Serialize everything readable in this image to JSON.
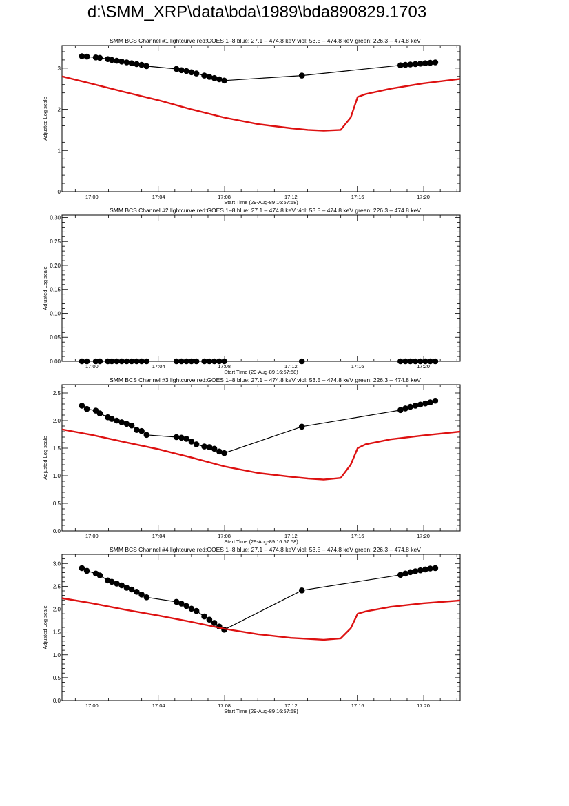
{
  "page": {
    "title": "d:\\SMM_XRP\\data\\bda\\1989\\bda890829.1703"
  },
  "colors": {
    "goes_series": "#dd1111",
    "bcs_series": "#000000"
  },
  "chart_data": [
    {
      "type": "line",
      "title": "SMM BCS Channel #1 lightcurve  red:GOES 1–8  blue: 27.1 – 474.8 keV  viol: 53.5 – 474.8 keV  green: 226.3 – 474.8 keV",
      "xlabel": "Start Time (29-Aug-89 16:57:58)",
      "ylabel": "Adjusted Log scale",
      "x_axis": "minutes after 16:58",
      "xlim": [
        16.97,
        17.37
      ],
      "ylim": [
        0,
        3.55
      ],
      "yticks": [
        0,
        1,
        2,
        3
      ],
      "ytick_labels": [
        "0",
        "1",
        "2",
        "3"
      ],
      "xticks": [
        17.0,
        17.067,
        17.133,
        17.2,
        17.267,
        17.333
      ],
      "xtick_labels": [
        "17:00",
        "17:04",
        "17:08",
        "17:12",
        "17:16",
        "17:20"
      ],
      "series": [
        {
          "kind": "bcs",
          "x": [
            16.99,
            16.995,
            17.004,
            17.008,
            17.016,
            17.02,
            17.025,
            17.03,
            17.035,
            17.04,
            17.045,
            17.05,
            17.055,
            17.085,
            17.09,
            17.095,
            17.1,
            17.105,
            17.113,
            17.118,
            17.123,
            17.128,
            17.133,
            17.211,
            17.31,
            17.315,
            17.32,
            17.325,
            17.33,
            17.335,
            17.34,
            17.345
          ],
          "values": [
            3.29,
            3.28,
            3.26,
            3.25,
            3.22,
            3.2,
            3.18,
            3.16,
            3.14,
            3.12,
            3.1,
            3.08,
            3.05,
            2.98,
            2.95,
            2.93,
            2.9,
            2.87,
            2.82,
            2.79,
            2.76,
            2.73,
            2.7,
            2.82,
            3.07,
            3.08,
            3.09,
            3.1,
            3.11,
            3.12,
            3.13,
            3.14
          ]
        },
        {
          "kind": "goes",
          "x": [
            16.97,
            17.0,
            17.033,
            17.067,
            17.1,
            17.133,
            17.167,
            17.2,
            17.217,
            17.233,
            17.25,
            17.26,
            17.267,
            17.275,
            17.3,
            17.333,
            17.37
          ],
          "values": [
            2.8,
            2.62,
            2.42,
            2.22,
            2.0,
            1.8,
            1.64,
            1.54,
            1.5,
            1.48,
            1.5,
            1.8,
            2.3,
            2.37,
            2.5,
            2.63,
            2.74
          ]
        }
      ]
    },
    {
      "type": "line",
      "title": "SMM BCS Channel #2 lightcurve  red:GOES 1–8  blue: 27.1 – 474.8 keV  viol: 53.5 – 474.8 keV  green: 226.3 – 474.8 keV",
      "xlabel": "Start Time (29-Aug-89 16:57:58)",
      "ylabel": "Adjusted Log scale",
      "x_axis": "minutes after 16:58",
      "xlim": [
        16.97,
        17.37
      ],
      "ylim": [
        0,
        0.305
      ],
      "yticks": [
        0,
        0.05,
        0.1,
        0.15,
        0.2,
        0.25,
        0.3
      ],
      "ytick_labels": [
        "0.00",
        "0.05",
        "0.10",
        "0.15",
        "0.20",
        "0.25",
        "0.30"
      ],
      "xticks": [
        17.0,
        17.067,
        17.133,
        17.2,
        17.267,
        17.333
      ],
      "xtick_labels": [
        "17:00",
        "17:04",
        "17:08",
        "17:12",
        "17:16",
        "17:20"
      ],
      "series": [
        {
          "kind": "bcs",
          "x": [
            16.99,
            16.995,
            17.004,
            17.008,
            17.016,
            17.02,
            17.025,
            17.03,
            17.035,
            17.04,
            17.045,
            17.05,
            17.055,
            17.085,
            17.09,
            17.095,
            17.1,
            17.105,
            17.113,
            17.118,
            17.123,
            17.128,
            17.133,
            17.211,
            17.31,
            17.315,
            17.32,
            17.325,
            17.33,
            17.335,
            17.34,
            17.345
          ],
          "values": [
            0,
            0,
            0,
            0,
            0,
            0,
            0,
            0,
            0,
            0,
            0,
            0,
            0,
            0,
            0,
            0,
            0,
            0,
            0,
            0,
            0,
            0,
            0,
            0,
            0,
            0,
            0,
            0,
            0,
            0,
            0,
            0
          ]
        }
      ]
    },
    {
      "type": "line",
      "title": "SMM BCS Channel #3 lightcurve  red:GOES 1–8  blue: 27.1 – 474.8 keV  viol: 53.5 – 474.8 keV  green: 226.3 – 474.8 keV",
      "xlabel": "Start Time (29-Aug-89 16:57:58)",
      "ylabel": "Adjusted Log scale",
      "x_axis": "minutes after 16:58",
      "xlim": [
        16.97,
        17.37
      ],
      "ylim": [
        0,
        2.65
      ],
      "yticks": [
        0,
        0.5,
        1,
        1.5,
        2,
        2.5
      ],
      "ytick_labels": [
        "0.0",
        "0.5",
        "1.0",
        "1.5",
        "2.0",
        "2.5"
      ],
      "xticks": [
        17.0,
        17.067,
        17.133,
        17.2,
        17.267,
        17.333
      ],
      "xtick_labels": [
        "17:00",
        "17:04",
        "17:08",
        "17:12",
        "17:16",
        "17:20"
      ],
      "series": [
        {
          "kind": "bcs",
          "x": [
            16.99,
            16.995,
            17.004,
            17.008,
            17.016,
            17.02,
            17.025,
            17.03,
            17.035,
            17.04,
            17.045,
            17.05,
            17.055,
            17.085,
            17.09,
            17.095,
            17.1,
            17.105,
            17.113,
            17.118,
            17.123,
            17.128,
            17.133,
            17.211,
            17.31,
            17.315,
            17.32,
            17.325,
            17.33,
            17.335,
            17.34,
            17.345
          ],
          "values": [
            2.27,
            2.21,
            2.18,
            2.13,
            2.06,
            2.03,
            2.0,
            1.97,
            1.94,
            1.91,
            1.83,
            1.81,
            1.74,
            1.7,
            1.69,
            1.67,
            1.62,
            1.57,
            1.53,
            1.52,
            1.49,
            1.44,
            1.41,
            1.89,
            2.19,
            2.22,
            2.25,
            2.27,
            2.29,
            2.31,
            2.33,
            2.36
          ]
        },
        {
          "kind": "goes",
          "x": [
            16.97,
            17.0,
            17.033,
            17.067,
            17.1,
            17.133,
            17.167,
            17.2,
            17.217,
            17.233,
            17.25,
            17.26,
            17.267,
            17.275,
            17.3,
            17.333,
            17.37
          ],
          "values": [
            1.84,
            1.74,
            1.61,
            1.48,
            1.33,
            1.17,
            1.05,
            0.98,
            0.95,
            0.93,
            0.96,
            1.2,
            1.5,
            1.57,
            1.66,
            1.73,
            1.8
          ]
        }
      ]
    },
    {
      "type": "line",
      "title": "SMM BCS Channel #4 lightcurve  red:GOES 1–8  blue: 27.1 – 474.8 keV  viol: 53.5 – 474.8 keV  green: 226.3 – 474.8 keV",
      "xlabel": "Start Time (29-Aug-89 16:57:58)",
      "ylabel": "Adjusted Log scale",
      "x_axis": "minutes after 16:58",
      "xlim": [
        16.97,
        17.37
      ],
      "ylim": [
        0,
        3.2
      ],
      "yticks": [
        0,
        0.5,
        1,
        1.5,
        2,
        2.5,
        3
      ],
      "ytick_labels": [
        "0.0",
        "0.5",
        "1.0",
        "1.5",
        "2.0",
        "2.5",
        "3.0"
      ],
      "xticks": [
        17.0,
        17.067,
        17.133,
        17.2,
        17.267,
        17.333
      ],
      "xtick_labels": [
        "17:00",
        "17:04",
        "17:08",
        "17:12",
        "17:16",
        "17:20"
      ],
      "series": [
        {
          "kind": "bcs",
          "x": [
            16.99,
            16.995,
            17.004,
            17.008,
            17.016,
            17.02,
            17.025,
            17.03,
            17.035,
            17.04,
            17.045,
            17.05,
            17.055,
            17.085,
            17.09,
            17.095,
            17.1,
            17.105,
            17.113,
            17.118,
            17.123,
            17.128,
            17.133,
            17.211,
            17.31,
            17.315,
            17.32,
            17.325,
            17.33,
            17.335,
            17.34,
            17.345
          ],
          "values": [
            2.9,
            2.84,
            2.78,
            2.74,
            2.63,
            2.6,
            2.56,
            2.52,
            2.47,
            2.43,
            2.38,
            2.32,
            2.26,
            2.16,
            2.12,
            2.07,
            2.01,
            1.96,
            1.84,
            1.77,
            1.7,
            1.62,
            1.55,
            2.41,
            2.75,
            2.78,
            2.81,
            2.83,
            2.85,
            2.87,
            2.89,
            2.9
          ]
        },
        {
          "kind": "goes",
          "x": [
            16.97,
            17.0,
            17.033,
            17.067,
            17.1,
            17.133,
            17.167,
            17.2,
            17.217,
            17.233,
            17.25,
            17.26,
            17.267,
            17.275,
            17.3,
            17.333,
            17.37
          ],
          "values": [
            2.24,
            2.13,
            1.99,
            1.86,
            1.72,
            1.57,
            1.45,
            1.37,
            1.35,
            1.33,
            1.36,
            1.58,
            1.9,
            1.95,
            2.05,
            2.13,
            2.19
          ]
        }
      ]
    }
  ]
}
